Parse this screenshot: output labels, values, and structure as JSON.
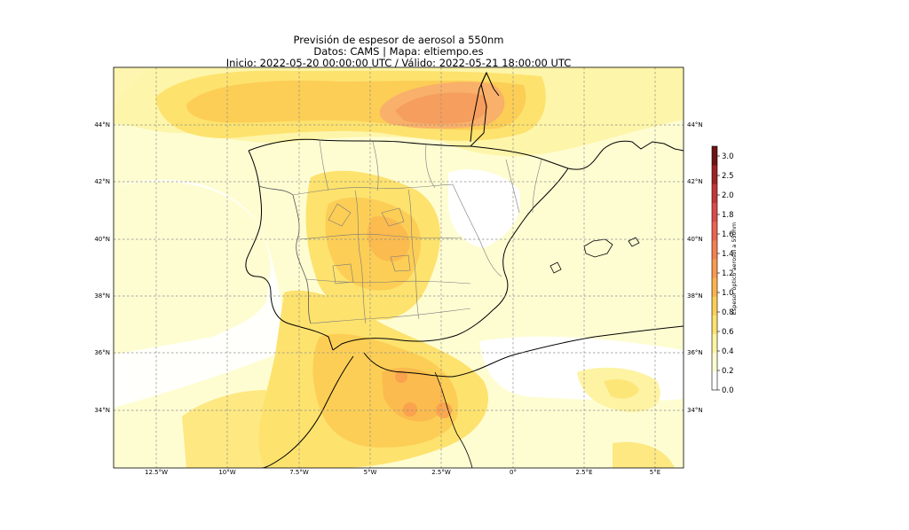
{
  "title": {
    "line1": "Previsión de espesor de aerosol a 550nm",
    "line2": "Datos: CAMS | Mapa: eltiempo.es",
    "line3": "Inicio: 2022-05-20 00:00:00 UTC / Válido: 2022-05-21 18:00:00 UTC"
  },
  "map": {
    "lon_range": [
      -14,
      6
    ],
    "lat_range": [
      32,
      46
    ],
    "lon_ticks": [
      "12.5°W",
      "10°W",
      "7.5°W",
      "5°W",
      "2.5°W",
      "0°",
      "2.5°E",
      "5°E"
    ],
    "lat_ticks_left": [
      "44°N",
      "42°N",
      "40°N",
      "38°N",
      "36°N",
      "34°N"
    ],
    "lat_ticks_right": [
      "44°N",
      "42°N",
      "40°N",
      "38°N",
      "36°N",
      "34°N"
    ],
    "grid": true,
    "gridline_style": "dashed grey"
  },
  "colorbar": {
    "label": "Espesor óptico aerosol a 550nm",
    "ticks": [
      "0.0",
      "0.2",
      "0.4",
      "0.6",
      "0.8",
      "1.0",
      "1.2",
      "1.4",
      "1.6",
      "1.8",
      "2.0",
      "2.5",
      "3.0"
    ],
    "colors": [
      "#ffffff",
      "#fefdd2",
      "#fdf3a2",
      "#fde26e",
      "#fcce55",
      "#fbb34b",
      "#f99a4d",
      "#f57f4f",
      "#ec6350",
      "#dc4a4a",
      "#c43636",
      "#9e2424",
      "#6e1414"
    ]
  }
}
